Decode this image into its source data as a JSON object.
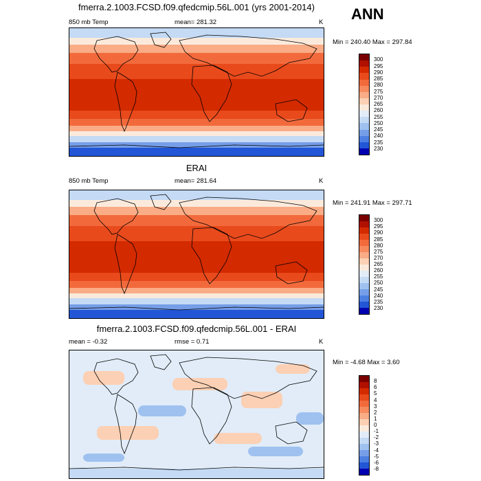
{
  "season": "ANN",
  "units_label": "K",
  "panels": [
    {
      "title": "fmerra.2.1003.FCSD.f09.qfedcmip.56L.001 (yrs 2001-2014)",
      "left_label": "850 mb Temp",
      "center_label": "mean= 281.32",
      "right_label": "K",
      "minmax": "Min = 240.40 Max = 297.84",
      "colorbar": {
        "labels": [
          "300",
          "295",
          "290",
          "285",
          "280",
          "275",
          "270",
          "265",
          "260",
          "255",
          "250",
          "245",
          "240",
          "235",
          "230"
        ],
        "colors": [
          "#7a0000",
          "#b01000",
          "#d42a00",
          "#e84a1c",
          "#f26a3c",
          "#f78a5e",
          "#f9ac86",
          "#fbd0b4",
          "#fbeadb",
          "#e1ecf8",
          "#c4daf5",
          "#9ec1ef",
          "#769ee8",
          "#4d7fe2",
          "#2256d6",
          "#0000b0"
        ]
      }
    },
    {
      "title": "ERAI",
      "left_label": "850 mb Temp",
      "center_label": "mean= 281.64",
      "right_label": "K",
      "minmax": "Min = 241.91 Max = 297.71",
      "colorbar": {
        "labels": [
          "300",
          "295",
          "290",
          "285",
          "280",
          "275",
          "270",
          "265",
          "260",
          "255",
          "250",
          "245",
          "240",
          "235",
          "230"
        ],
        "colors": [
          "#7a0000",
          "#b01000",
          "#d42a00",
          "#e84a1c",
          "#f26a3c",
          "#f78a5e",
          "#f9ac86",
          "#fbd0b4",
          "#fbeadb",
          "#e1ecf8",
          "#c4daf5",
          "#9ec1ef",
          "#769ee8",
          "#4d7fe2",
          "#2256d6",
          "#0000b0"
        ]
      }
    },
    {
      "title": "fmerra.2.1003.FCSD.f09.qfedcmip.56L.001 - ERAI",
      "left_label": "mean =  -0.32",
      "center_label": "rmse =    0.71",
      "right_label": "K",
      "minmax": "Min =  -4.68 Max =   3.60",
      "colorbar": {
        "labels": [
          "8",
          "6",
          "5",
          "4",
          "3",
          "2",
          "1",
          "0",
          "-1",
          "-2",
          "-3",
          "-4",
          "-5",
          "-6",
          "-8"
        ],
        "colors": [
          "#7a0000",
          "#b01000",
          "#d42a00",
          "#e84a1c",
          "#f26a3c",
          "#f78a5e",
          "#f9ac86",
          "#fbd0b4",
          "#fbeadb",
          "#e1ecf8",
          "#c4daf5",
          "#9ec1ef",
          "#769ee8",
          "#4d7fe2",
          "#2256d6",
          "#0000b0"
        ]
      }
    }
  ],
  "map_colors": {
    "polar_deep": "#2256d6",
    "polar_mid": "#769ee8",
    "polar_light": "#c4daf5",
    "mid_pale": "#fbeadb",
    "mid_peach": "#f9ac86",
    "warm": "#f26a3c",
    "hot": "#e84a1c",
    "tropic": "#d42a00",
    "diff_base": "#e1ecf8",
    "diff_warm": "#fbd0b4",
    "diff_cool": "#c4daf5",
    "diff_neg": "#9ec1ef",
    "coast": "#000000"
  }
}
